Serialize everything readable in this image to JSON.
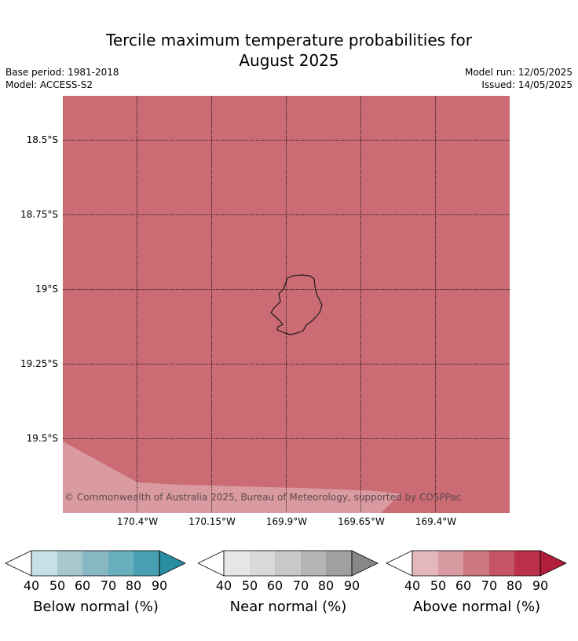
{
  "header": {
    "title_line1": "Tercile maximum temperature probabilities for",
    "title_line2": "August 2025",
    "base_period": "Base period: 1981-2018",
    "model": "Model: ACCESS-S2",
    "model_run": "Model run: 12/05/2025",
    "issued": "Issued: 14/05/2025"
  },
  "map": {
    "y_ticks": [
      "18.5°S",
      "18.75°S",
      "19°S",
      "19.25°S",
      "19.5°S"
    ],
    "x_ticks": [
      "170.4°W",
      "170.15°W",
      "169.9°W",
      "169.65°W",
      "169.4°W"
    ],
    "copyright": "© Commonwealth of Australia 2025, Bureau of Meteorology, supported by COSPPac",
    "colors": {
      "above_70_80": "#cb6b74",
      "above_50_60": "#d99aa0",
      "coastline": "#1a1a1a",
      "gridline": "#000000"
    }
  },
  "legends": [
    {
      "label": "Below normal (%)",
      "ticks": [
        "40",
        "50",
        "60",
        "70",
        "80",
        "90"
      ],
      "colors": [
        "#c7e0e7",
        "#a6c7ce",
        "#88b7c4",
        "#6aafbd",
        "#479fb1",
        "#2a8ea3"
      ]
    },
    {
      "label": "Near normal (%)",
      "ticks": [
        "40",
        "50",
        "60",
        "70",
        "80",
        "90"
      ],
      "colors": [
        "#e6e6e6",
        "#d9d9d9",
        "#c8c8c8",
        "#b5b5b5",
        "#a0a0a0",
        "#878787"
      ]
    },
    {
      "label": "Above normal (%)",
      "ticks": [
        "40",
        "50",
        "60",
        "70",
        "80",
        "90"
      ],
      "colors": [
        "#e3b7bc",
        "#d69aa0",
        "#cf7780",
        "#c55565",
        "#bd304a",
        "#b21d3b"
      ]
    }
  ]
}
